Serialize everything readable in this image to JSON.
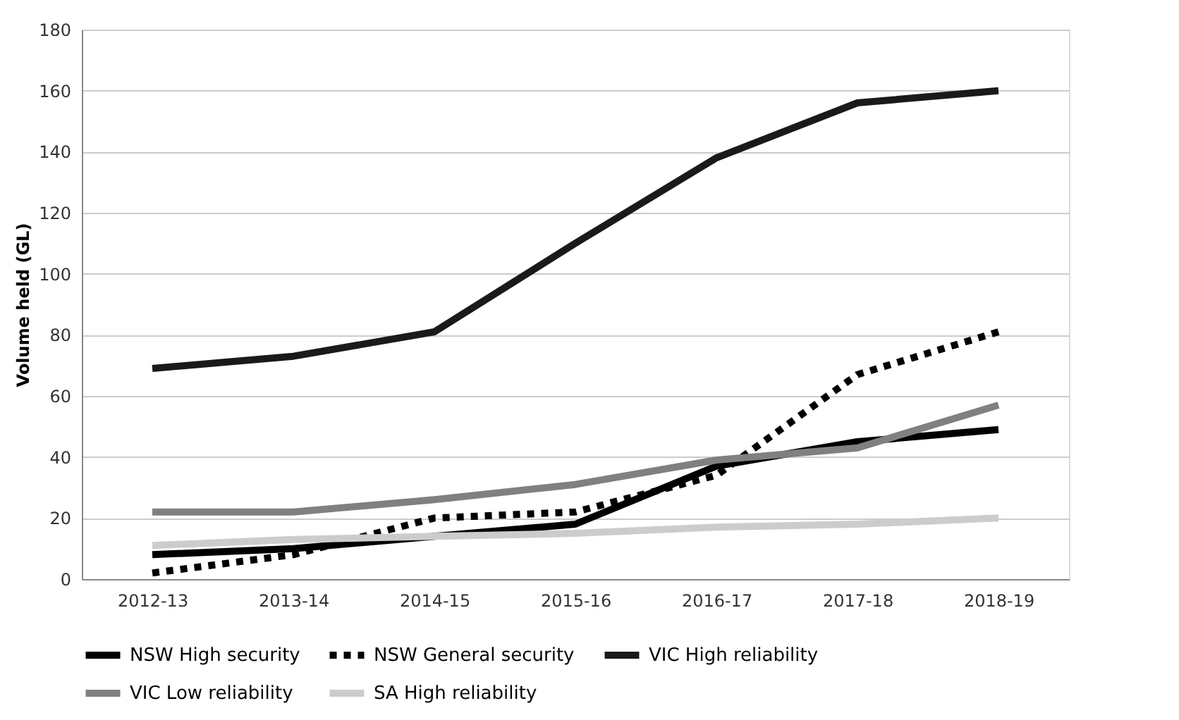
{
  "chart_data": {
    "type": "line",
    "ylabel": "Volume held (GL)",
    "categories": [
      "2012-13",
      "2013-14",
      "2014-15",
      "2015-16",
      "2016-17",
      "2017-18",
      "2018-19"
    ],
    "series": [
      {
        "name": "NSW High security",
        "color": "#000000",
        "line_style": "solid",
        "values": [
          8,
          10,
          14,
          18,
          37,
          45,
          49
        ]
      },
      {
        "name": "NSW General security",
        "color": "#000000",
        "line_style": "dotted",
        "values": [
          2,
          8,
          20,
          22,
          34,
          67,
          81
        ]
      },
      {
        "name": "VIC High reliability",
        "color": "#1a1a1a",
        "line_style": "solid",
        "values": [
          69,
          73,
          81,
          110,
          138,
          156,
          160
        ]
      },
      {
        "name": "VIC Low reliability",
        "color": "#808080",
        "line_style": "solid",
        "values": [
          22,
          22,
          26,
          31,
          39,
          43,
          57
        ]
      },
      {
        "name": "SA High reliability",
        "color": "#cccccc",
        "line_style": "solid",
        "values": [
          11,
          13,
          14,
          15,
          17,
          18,
          20
        ]
      }
    ],
    "ylim": [
      0,
      180
    ],
    "yticks": [
      0,
      20,
      40,
      60,
      80,
      100,
      120,
      140,
      160,
      180
    ],
    "grid": "y",
    "legend": "bottom",
    "marker": "none"
  }
}
